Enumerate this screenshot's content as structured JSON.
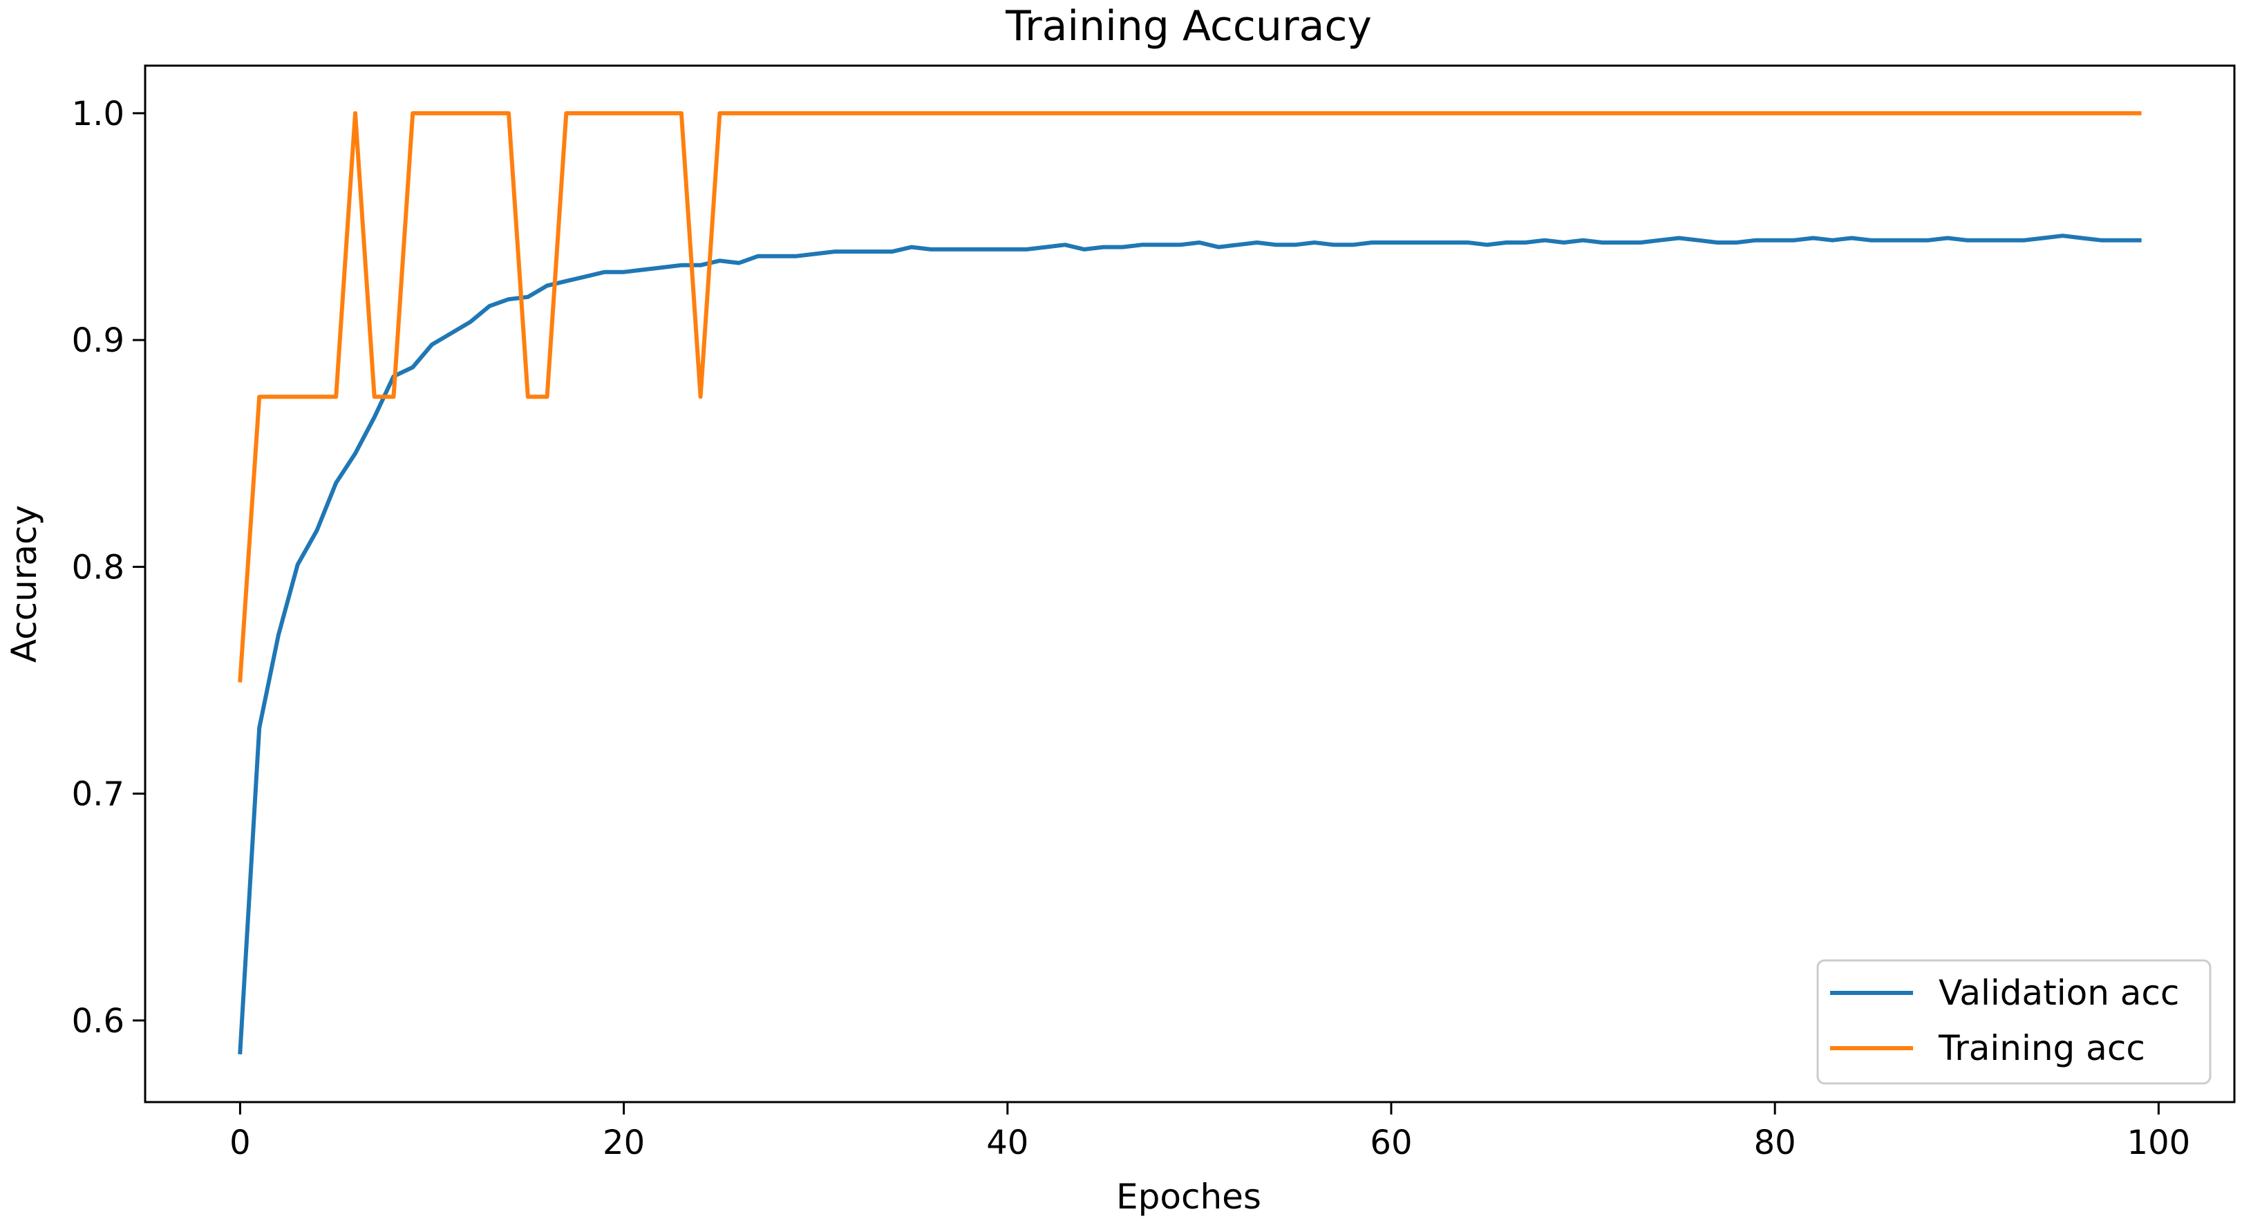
{
  "chart_data": {
    "type": "line",
    "title": "Training Accuracy",
    "xlabel": "Epoches",
    "ylabel": "Accuracy",
    "xlim": [
      -4.95,
      103.95
    ],
    "ylim": [
      0.564,
      1.021
    ],
    "xticks": [
      0,
      20,
      40,
      60,
      80,
      100
    ],
    "yticks": [
      0.6,
      0.7,
      0.8,
      0.9,
      1.0
    ],
    "xtick_labels": [
      "0",
      "20",
      "40",
      "60",
      "80",
      "100"
    ],
    "ytick_labels": [
      "0.6",
      "0.7",
      "0.8",
      "0.9",
      "1.0"
    ],
    "grid": false,
    "legend_position": "lower-right",
    "x": [
      0,
      1,
      2,
      3,
      4,
      5,
      6,
      7,
      8,
      9,
      10,
      11,
      12,
      13,
      14,
      15,
      16,
      17,
      18,
      19,
      20,
      21,
      22,
      23,
      24,
      25,
      26,
      27,
      28,
      29,
      30,
      31,
      32,
      33,
      34,
      35,
      36,
      37,
      38,
      39,
      40,
      41,
      42,
      43,
      44,
      45,
      46,
      47,
      48,
      49,
      50,
      51,
      52,
      53,
      54,
      55,
      56,
      57,
      58,
      59,
      60,
      61,
      62,
      63,
      64,
      65,
      66,
      67,
      68,
      69,
      70,
      71,
      72,
      73,
      74,
      75,
      76,
      77,
      78,
      79,
      80,
      81,
      82,
      83,
      84,
      85,
      86,
      87,
      88,
      89,
      90,
      91,
      92,
      93,
      94,
      95,
      96,
      97,
      98,
      99
    ],
    "series": [
      {
        "name": "Validation acc",
        "color": "#1f77b4",
        "values": [
          0.586,
          0.729,
          0.77,
          0.801,
          0.816,
          0.837,
          0.85,
          0.866,
          0.884,
          0.888,
          0.898,
          0.903,
          0.908,
          0.915,
          0.918,
          0.919,
          0.924,
          0.926,
          0.928,
          0.93,
          0.93,
          0.931,
          0.932,
          0.933,
          0.933,
          0.935,
          0.934,
          0.937,
          0.937,
          0.937,
          0.938,
          0.939,
          0.939,
          0.939,
          0.939,
          0.941,
          0.94,
          0.94,
          0.94,
          0.94,
          0.94,
          0.94,
          0.941,
          0.942,
          0.94,
          0.941,
          0.941,
          0.942,
          0.942,
          0.942,
          0.943,
          0.941,
          0.942,
          0.943,
          0.942,
          0.942,
          0.943,
          0.942,
          0.942,
          0.943,
          0.943,
          0.943,
          0.943,
          0.943,
          0.943,
          0.942,
          0.943,
          0.943,
          0.944,
          0.943,
          0.944,
          0.943,
          0.943,
          0.943,
          0.944,
          0.945,
          0.944,
          0.943,
          0.943,
          0.944,
          0.944,
          0.944,
          0.945,
          0.944,
          0.945,
          0.944,
          0.944,
          0.944,
          0.944,
          0.945,
          0.944,
          0.944,
          0.944,
          0.944,
          0.945,
          0.946,
          0.945,
          0.944,
          0.944,
          0.944
        ]
      },
      {
        "name": "Training acc",
        "color": "#ff7f0e",
        "values": [
          0.75,
          0.875,
          0.875,
          0.875,
          0.875,
          0.875,
          1.0,
          0.875,
          0.875,
          1.0,
          1.0,
          1.0,
          1.0,
          1.0,
          1.0,
          0.875,
          0.875,
          1.0,
          1.0,
          1.0,
          1.0,
          1.0,
          1.0,
          1.0,
          0.875,
          1.0,
          1.0,
          1.0,
          1.0,
          1.0,
          1.0,
          1.0,
          1.0,
          1.0,
          1.0,
          1.0,
          1.0,
          1.0,
          1.0,
          1.0,
          1.0,
          1.0,
          1.0,
          1.0,
          1.0,
          1.0,
          1.0,
          1.0,
          1.0,
          1.0,
          1.0,
          1.0,
          1.0,
          1.0,
          1.0,
          1.0,
          1.0,
          1.0,
          1.0,
          1.0,
          1.0,
          1.0,
          1.0,
          1.0,
          1.0,
          1.0,
          1.0,
          1.0,
          1.0,
          1.0,
          1.0,
          1.0,
          1.0,
          1.0,
          1.0,
          1.0,
          1.0,
          1.0,
          1.0,
          1.0,
          1.0,
          1.0,
          1.0,
          1.0,
          1.0,
          1.0,
          1.0,
          1.0,
          1.0,
          1.0,
          1.0,
          1.0,
          1.0,
          1.0,
          1.0,
          1.0,
          1.0,
          1.0,
          1.0,
          1.0
        ]
      }
    ]
  }
}
